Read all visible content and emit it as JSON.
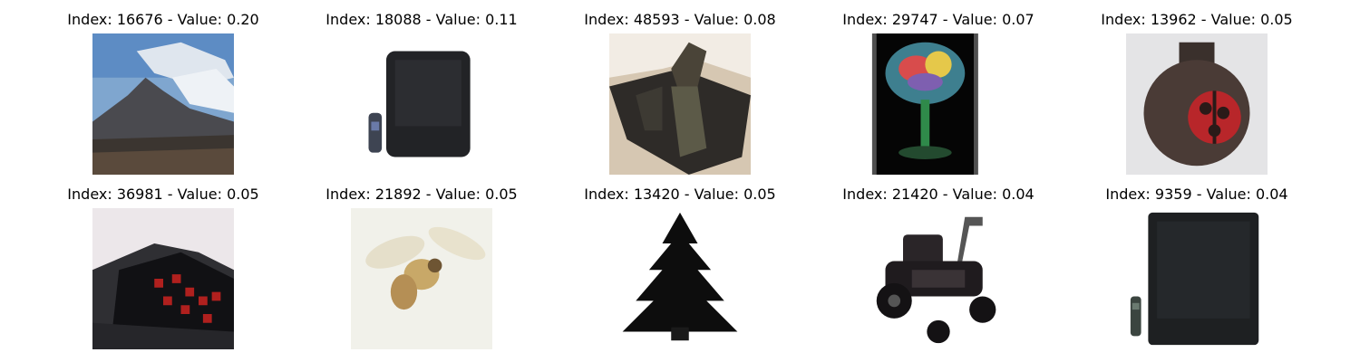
{
  "figure": {
    "panels": [
      {
        "title": "Index: 16676 - Value: 0.20",
        "icon": "mountain-landscape"
      },
      {
        "title": "Index: 18088 - Value: 0.11",
        "icon": "television-with-remote"
      },
      {
        "title": "Index: 48593 - Value: 0.08",
        "icon": "box-object"
      },
      {
        "title": "Index: 29747 - Value: 0.07",
        "icon": "glass-flower"
      },
      {
        "title": "Index: 13962 - Value: 0.05",
        "icon": "ladybug-jar"
      },
      {
        "title": "Index: 36981 - Value: 0.05",
        "icon": "alarm-clock"
      },
      {
        "title": "Index: 21892 - Value: 0.05",
        "icon": "bee"
      },
      {
        "title": "Index: 13420 - Value: 0.05",
        "icon": "pine-tree"
      },
      {
        "title": "Index: 21420 - Value: 0.04",
        "icon": "lawn-tractor"
      },
      {
        "title": "Index: 9359 - Value: 0.04",
        "icon": "television-with-remote"
      }
    ]
  }
}
